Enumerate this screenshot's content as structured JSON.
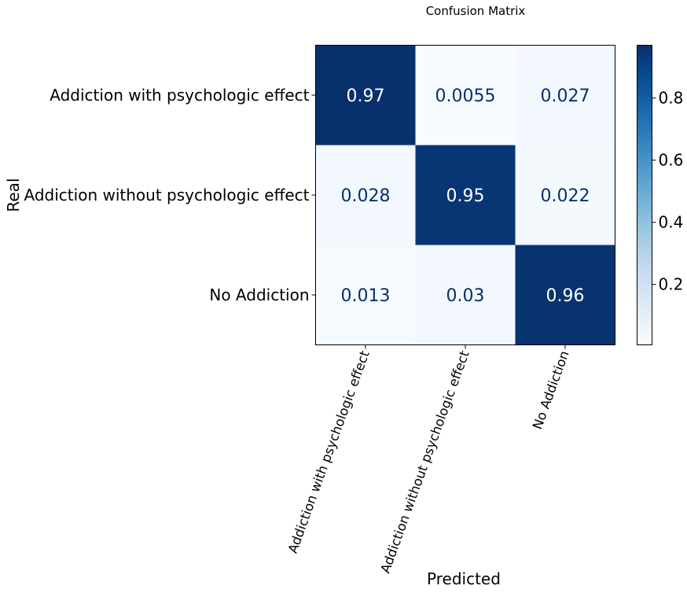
{
  "chart_data": {
    "type": "heatmap",
    "title": "Confusion Matrix",
    "xlabel": "Predicted",
    "ylabel": "Real",
    "x_categories": [
      "Addiction with psychologic effect",
      "Addiction without psychologic effect",
      "No Addiction"
    ],
    "y_categories": [
      "Addiction with psychologic effect",
      "Addiction without psychologic effect",
      "No Addiction"
    ],
    "values": [
      [
        0.97,
        0.0055,
        0.027
      ],
      [
        0.028,
        0.95,
        0.022
      ],
      [
        0.013,
        0.03,
        0.96
      ]
    ],
    "value_labels": [
      [
        "0.97",
        "0.0055",
        "0.027"
      ],
      [
        "0.028",
        "0.95",
        "0.022"
      ],
      [
        "0.013",
        "0.03",
        "0.96"
      ]
    ],
    "colormap": "Blues",
    "vmin": 0.0055,
    "vmax": 0.97,
    "colorbar_ticks": [
      0.2,
      0.4,
      0.6,
      0.8
    ],
    "colorbar_tick_labels": [
      "0.2",
      "0.4",
      "0.6",
      "0.8"
    ],
    "x_tick_rotation_deg": 70,
    "colors": {
      "dark_cell_text": "#ffffff",
      "light_cell_text": "#08306b"
    }
  }
}
